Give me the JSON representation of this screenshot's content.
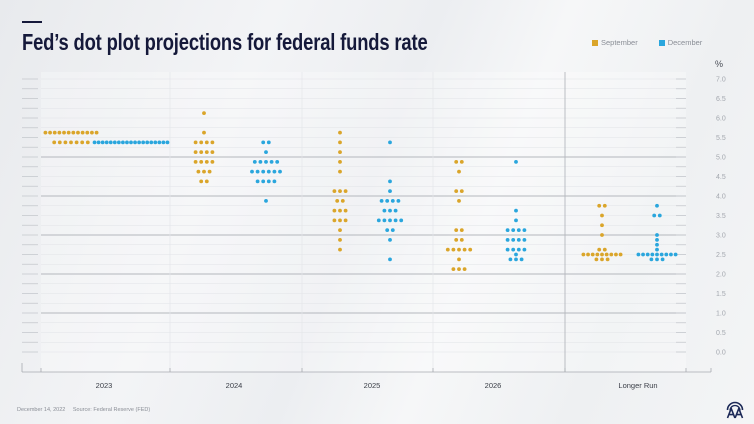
{
  "header": {
    "title": "Fed’s dot plot projections for federal funds rate"
  },
  "legend": {
    "items": [
      {
        "label": "September",
        "color": "#daa52a"
      },
      {
        "label": "December",
        "color": "#2aa6dd"
      }
    ]
  },
  "footer": {
    "date": "December 14, 2022",
    "source": "Source: Federal Reserve (FED)"
  },
  "logo": {
    "icon": "aa-logo-icon"
  },
  "chart_data": {
    "type": "scatter",
    "subtype": "dot-plot",
    "title": "Fed’s dot plot projections for federal funds rate",
    "xlabel": "",
    "ylabel": "%",
    "categories": [
      "2023",
      "2024",
      "2025",
      "2026",
      "Longer Run"
    ],
    "ylim": [
      0,
      7
    ],
    "y_ticks": [
      0,
      0.5,
      1,
      1.5,
      2,
      2.5,
      3,
      3.5,
      4,
      4.5,
      5,
      5.5,
      6,
      6.5,
      7
    ],
    "y_tick_labels": [
      "0.0",
      "0.5",
      "1.0",
      "1.5",
      "2.0",
      "2.5",
      "3.0",
      "3.5",
      "4.0",
      "4.5",
      "5.0",
      "5.5",
      "6.0",
      "6.5",
      "7.0"
    ],
    "minor_tick_step": 0.25,
    "major_gridlines": [
      1,
      2,
      3,
      4,
      5
    ],
    "grid": true,
    "legend_position": "top-right",
    "series": [
      {
        "name": "September",
        "color": "#daa52a",
        "points": [
          {
            "category": "2023",
            "rate": 5.625,
            "count": 12
          },
          {
            "category": "2023",
            "rate": 5.375,
            "count": 7
          },
          {
            "category": "2024",
            "rate": 6.125,
            "count": 1
          },
          {
            "category": "2024",
            "rate": 5.625,
            "count": 1
          },
          {
            "category": "2024",
            "rate": 5.375,
            "count": 4
          },
          {
            "category": "2024",
            "rate": 5.125,
            "count": 4
          },
          {
            "category": "2024",
            "rate": 4.875,
            "count": 4
          },
          {
            "category": "2024",
            "rate": 4.625,
            "count": 3
          },
          {
            "category": "2024",
            "rate": 4.375,
            "count": 2
          },
          {
            "category": "2025",
            "rate": 5.625,
            "count": 1
          },
          {
            "category": "2025",
            "rate": 5.375,
            "count": 1
          },
          {
            "category": "2025",
            "rate": 5.125,
            "count": 1
          },
          {
            "category": "2025",
            "rate": 4.875,
            "count": 1
          },
          {
            "category": "2025",
            "rate": 4.625,
            "count": 1
          },
          {
            "category": "2025",
            "rate": 4.125,
            "count": 3
          },
          {
            "category": "2025",
            "rate": 3.875,
            "count": 2
          },
          {
            "category": "2025",
            "rate": 3.625,
            "count": 3
          },
          {
            "category": "2025",
            "rate": 3.375,
            "count": 3
          },
          {
            "category": "2025",
            "rate": 3.125,
            "count": 1
          },
          {
            "category": "2025",
            "rate": 2.875,
            "count": 1
          },
          {
            "category": "2025",
            "rate": 2.625,
            "count": 1
          },
          {
            "category": "2026",
            "rate": 4.875,
            "count": 2
          },
          {
            "category": "2026",
            "rate": 4.625,
            "count": 1
          },
          {
            "category": "2026",
            "rate": 4.125,
            "count": 2
          },
          {
            "category": "2026",
            "rate": 3.875,
            "count": 1
          },
          {
            "category": "2026",
            "rate": 3.125,
            "count": 2
          },
          {
            "category": "2026",
            "rate": 2.875,
            "count": 2
          },
          {
            "category": "2026",
            "rate": 2.625,
            "count": 5
          },
          {
            "category": "2026",
            "rate": 2.375,
            "count": 1
          },
          {
            "category": "2026",
            "rate": 2.125,
            "count": 3
          },
          {
            "category": "Longer Run",
            "rate": 3.75,
            "count": 2
          },
          {
            "category": "Longer Run",
            "rate": 3.5,
            "count": 1
          },
          {
            "category": "Longer Run",
            "rate": 3.25,
            "count": 1
          },
          {
            "category": "Longer Run",
            "rate": 3.0,
            "count": 1
          },
          {
            "category": "Longer Run",
            "rate": 2.625,
            "count": 2
          },
          {
            "category": "Longer Run",
            "rate": 2.5,
            "count": 9
          },
          {
            "category": "Longer Run",
            "rate": 2.375,
            "count": 3
          }
        ]
      },
      {
        "name": "December",
        "color": "#2aa6dd",
        "points": [
          {
            "category": "2023",
            "rate": 5.375,
            "count": 19
          },
          {
            "category": "2024",
            "rate": 5.375,
            "count": 2
          },
          {
            "category": "2024",
            "rate": 5.125,
            "count": 1
          },
          {
            "category": "2024",
            "rate": 4.875,
            "count": 5
          },
          {
            "category": "2024",
            "rate": 4.625,
            "count": 6
          },
          {
            "category": "2024",
            "rate": 4.375,
            "count": 4
          },
          {
            "category": "2024",
            "rate": 3.875,
            "count": 1
          },
          {
            "category": "2025",
            "rate": 5.375,
            "count": 1
          },
          {
            "category": "2025",
            "rate": 4.375,
            "count": 1
          },
          {
            "category": "2025",
            "rate": 4.125,
            "count": 1
          },
          {
            "category": "2025",
            "rate": 3.875,
            "count": 4
          },
          {
            "category": "2025",
            "rate": 3.625,
            "count": 3
          },
          {
            "category": "2025",
            "rate": 3.375,
            "count": 5
          },
          {
            "category": "2025",
            "rate": 3.125,
            "count": 2
          },
          {
            "category": "2025",
            "rate": 2.875,
            "count": 1
          },
          {
            "category": "2025",
            "rate": 2.375,
            "count": 1
          },
          {
            "category": "2026",
            "rate": 4.875,
            "count": 1
          },
          {
            "category": "2026",
            "rate": 3.625,
            "count": 1
          },
          {
            "category": "2026",
            "rate": 3.375,
            "count": 1
          },
          {
            "category": "2026",
            "rate": 3.125,
            "count": 4
          },
          {
            "category": "2026",
            "rate": 2.875,
            "count": 4
          },
          {
            "category": "2026",
            "rate": 2.625,
            "count": 4
          },
          {
            "category": "2026",
            "rate": 2.5,
            "count": 1
          },
          {
            "category": "2026",
            "rate": 2.375,
            "count": 3
          },
          {
            "category": "Longer Run",
            "rate": 3.75,
            "count": 1
          },
          {
            "category": "Longer Run",
            "rate": 3.5,
            "count": 2
          },
          {
            "category": "Longer Run",
            "rate": 3.0,
            "count": 1
          },
          {
            "category": "Longer Run",
            "rate": 2.875,
            "count": 1
          },
          {
            "category": "Longer Run",
            "rate": 2.75,
            "count": 1
          },
          {
            "category": "Longer Run",
            "rate": 2.625,
            "count": 1
          },
          {
            "category": "Longer Run",
            "rate": 2.5,
            "count": 9
          },
          {
            "category": "Longer Run",
            "rate": 2.375,
            "count": 3
          }
        ]
      }
    ]
  }
}
